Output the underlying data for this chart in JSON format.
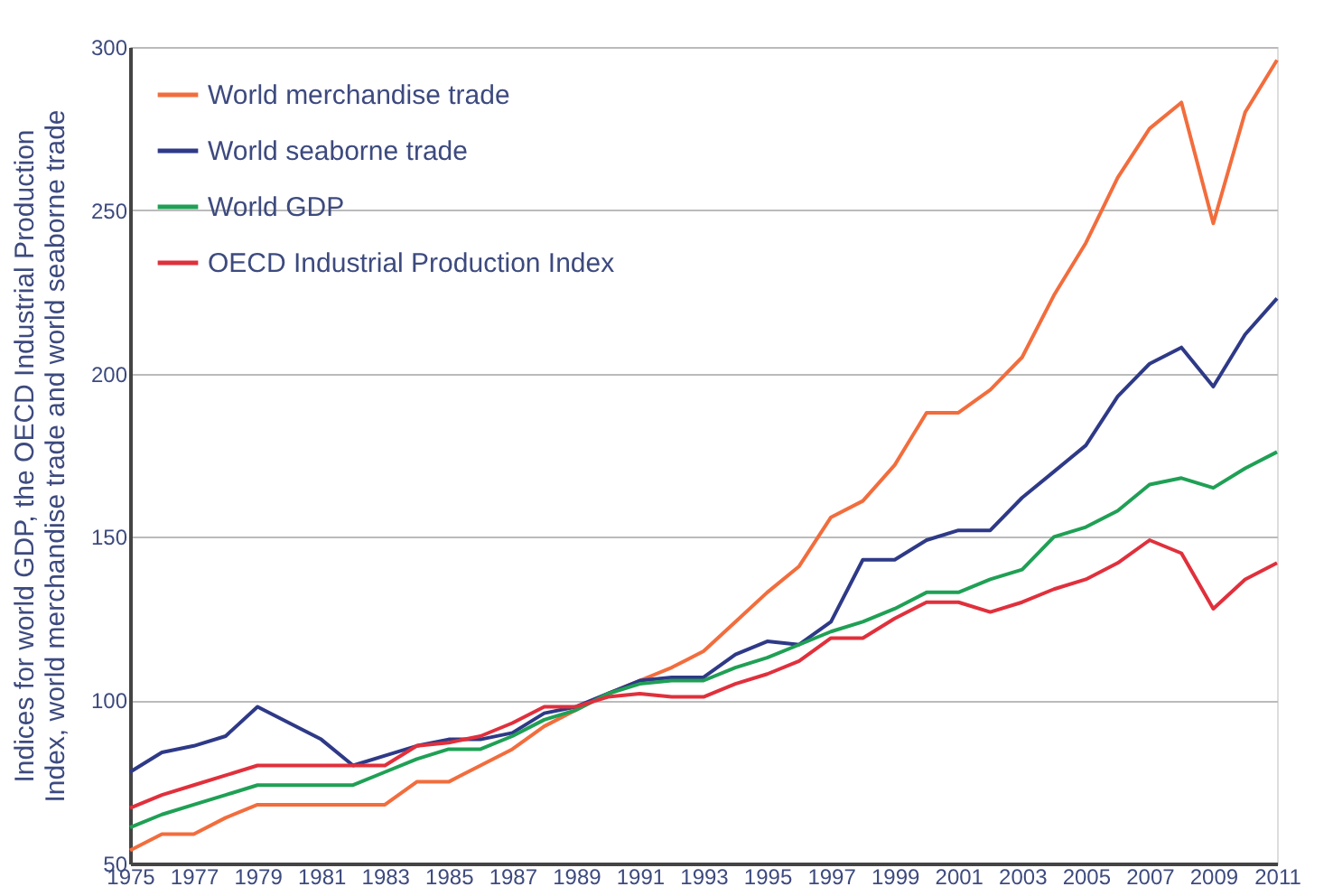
{
  "chart_data": {
    "type": "line",
    "ylabel": "Indices for world GDP, the OECD Industrial Production Index, world merchandise trade and world seaborne trade",
    "x": [
      1975,
      1976,
      1977,
      1978,
      1979,
      1980,
      1981,
      1982,
      1983,
      1984,
      1985,
      1986,
      1987,
      1988,
      1989,
      1990,
      1991,
      1992,
      1993,
      1994,
      1995,
      1996,
      1997,
      1998,
      1999,
      2000,
      2001,
      2002,
      2003,
      2004,
      2005,
      2006,
      2007,
      2008,
      2009,
      2010,
      2011
    ],
    "xlim": [
      1975,
      2011
    ],
    "xticks": [
      1975,
      1977,
      1979,
      1981,
      1983,
      1985,
      1987,
      1989,
      1991,
      1993,
      1995,
      1997,
      1999,
      2001,
      2003,
      2005,
      2007,
      2009,
      2011
    ],
    "ylim": [
      50,
      300
    ],
    "yticks": [
      50,
      100,
      150,
      200,
      250,
      300
    ],
    "grid": "y",
    "legend": "top left",
    "line_style": "solid",
    "marker": "none",
    "series": [
      {
        "name": "World merchandise trade",
        "color": "#f26d3d",
        "values": [
          54,
          59,
          59,
          64,
          68,
          68,
          68,
          68,
          68,
          75,
          75,
          80,
          85,
          92,
          97,
          102,
          106,
          110,
          115,
          124,
          133,
          141,
          156,
          161,
          172,
          188,
          188,
          195,
          205,
          224,
          240,
          260,
          275,
          283,
          246,
          280,
          296
        ]
      },
      {
        "name": "World seaborne trade",
        "color": "#2e3a87",
        "values": [
          78,
          84,
          86,
          89,
          98,
          93,
          88,
          80,
          83,
          86,
          88,
          88,
          90,
          96,
          98,
          102,
          106,
          107,
          107,
          114,
          118,
          117,
          124,
          143,
          143,
          149,
          152,
          152,
          162,
          170,
          178,
          193,
          203,
          208,
          196,
          212,
          223
        ]
      },
      {
        "name": "World GDP",
        "color": "#1fa055",
        "values": [
          61,
          65,
          68,
          71,
          74,
          74,
          74,
          74,
          78,
          82,
          85,
          85,
          89,
          94,
          97,
          102,
          105,
          106,
          106,
          110,
          113,
          117,
          121,
          124,
          128,
          133,
          133,
          137,
          140,
          150,
          153,
          158,
          166,
          168,
          165,
          171,
          176
        ]
      },
      {
        "name": "OECD Industrial Production Index",
        "color": "#e0303c",
        "values": [
          67,
          71,
          74,
          77,
          80,
          80,
          80,
          80,
          80,
          86,
          87,
          89,
          93,
          98,
          98,
          101,
          102,
          101,
          101,
          105,
          108,
          112,
          119,
          119,
          125,
          130,
          130,
          127,
          130,
          134,
          137,
          142,
          149,
          145,
          128,
          137,
          142
        ]
      }
    ]
  }
}
